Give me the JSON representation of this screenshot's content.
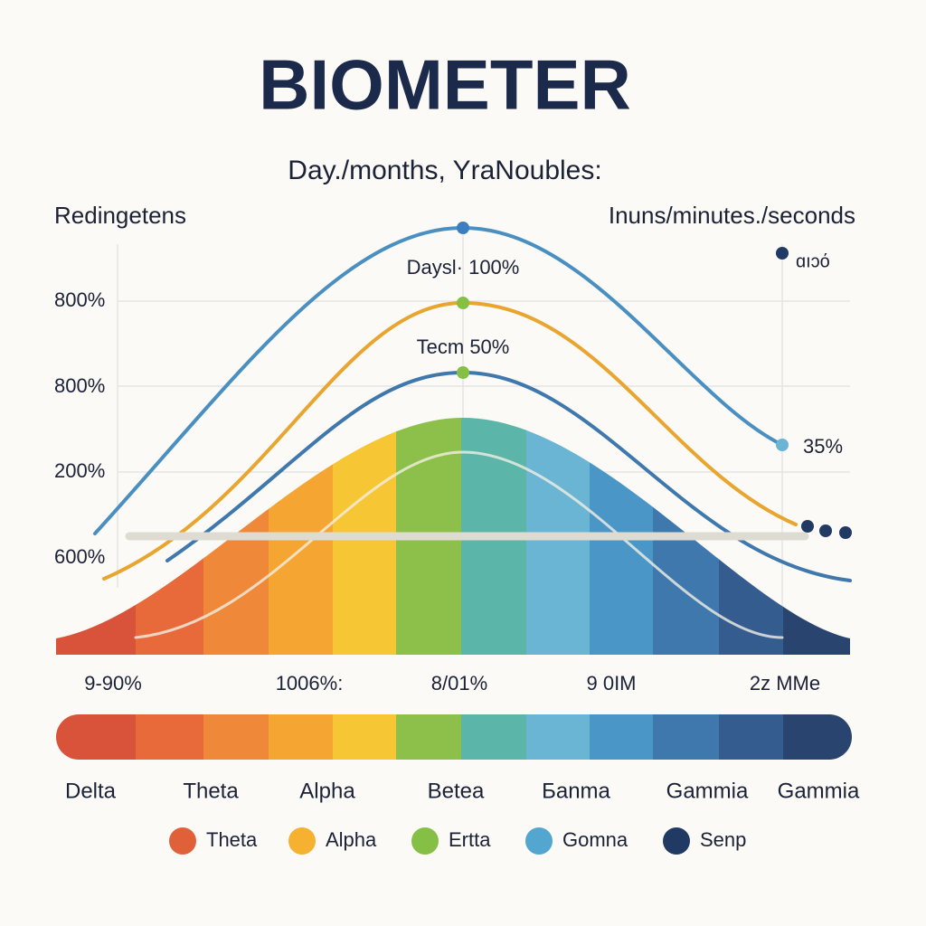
{
  "title": "BIOMETER",
  "subtitle": "Day./months, YraNoubles:",
  "left_label": "Redingetens",
  "right_label": "Inuns/minutes./seconds",
  "axis_labels": [
    "800%",
    "800%",
    "200%",
    "600%"
  ],
  "annotations": [
    "Daysl· 100%",
    "Tecm 50%",
    "35%",
    "ɑıɔό"
  ],
  "bottom_labels": [
    "9-90%",
    "1006%:",
    "8/01%",
    "9 0IM",
    "2z MMe"
  ],
  "bands": [
    "Delta",
    "Theta",
    "Alpha",
    "Betea",
    "Бanma",
    "Gammia",
    "Gammia"
  ],
  "legend": [
    {
      "label": "Theta",
      "color": "#e0603a"
    },
    {
      "label": "Alpha",
      "color": "#f5b12f"
    },
    {
      "label": "Ertta",
      "color": "#86bf45"
    },
    {
      "label": "Gomna",
      "color": "#52a6cf"
    },
    {
      "label": "Senp",
      "color": "#203a63"
    }
  ]
}
